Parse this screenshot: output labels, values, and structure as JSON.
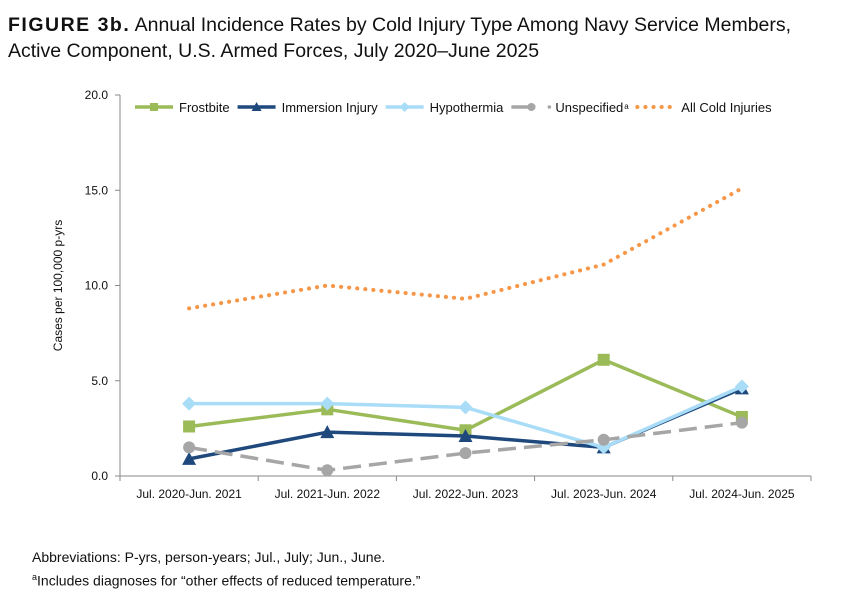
{
  "figure_label": "FIGURE 3b.",
  "title": "Annual Incidence Rates by Cold Injury Type Among Navy Service Members, Active Component, U.S. Armed Forces, July 2020–June 2025",
  "notes": {
    "abbreviations": "Abbreviations: P-yrs, person-years; Jul., July; Jun., June.",
    "footnote_marker": "a",
    "footnote": "Includes diagnoses for “other effects of reduced temperature.”"
  },
  "chart_data": {
    "type": "line",
    "title": "Annual Incidence Rates by Cold Injury Type Among Navy Service Members, Active Component, U.S. Armed Forces, July 2020–June 2025",
    "ylabel": "Cases per 100,000 p-yrs",
    "xlabel": "",
    "ylim": [
      0,
      20
    ],
    "yticks": [
      "0.0",
      "5.0",
      "10.0",
      "15.0",
      "20.0"
    ],
    "grid": false,
    "legend_placement": "top",
    "categories": [
      "Jul. 2020-Jun. 2021",
      "Jul. 2021-Jun. 2022",
      "Jul. 2022-Jun. 2023",
      "Jul. 2023-Jun. 2024",
      "Jul. 2024-Jun. 2025"
    ],
    "series": [
      {
        "name": "Frostbite",
        "color": "#9bbb59",
        "marker": "square",
        "dash": "solid",
        "values": [
          2.6,
          3.5,
          2.4,
          6.1,
          3.1
        ]
      },
      {
        "name": "Immersion Injury",
        "color": "#1f497d",
        "marker": "triangle",
        "dash": "solid",
        "values": [
          0.9,
          2.3,
          2.1,
          1.5,
          4.6
        ]
      },
      {
        "name": "Hypothermia",
        "color": "#a9dcf7",
        "marker": "diamond",
        "dash": "solid",
        "values": [
          3.8,
          3.8,
          3.6,
          1.5,
          4.7
        ]
      },
      {
        "name": "Unspecified",
        "name_superscript": "a",
        "color": "#a6a6a6",
        "marker": "circle",
        "dash": "dashed",
        "values": [
          1.5,
          0.3,
          1.2,
          1.9,
          2.8
        ]
      },
      {
        "name": "All Cold Injuries",
        "color": "#f79646",
        "marker": "none",
        "dash": "dotted",
        "values": [
          8.8,
          10.0,
          9.3,
          11.1,
          15.1
        ]
      }
    ]
  }
}
